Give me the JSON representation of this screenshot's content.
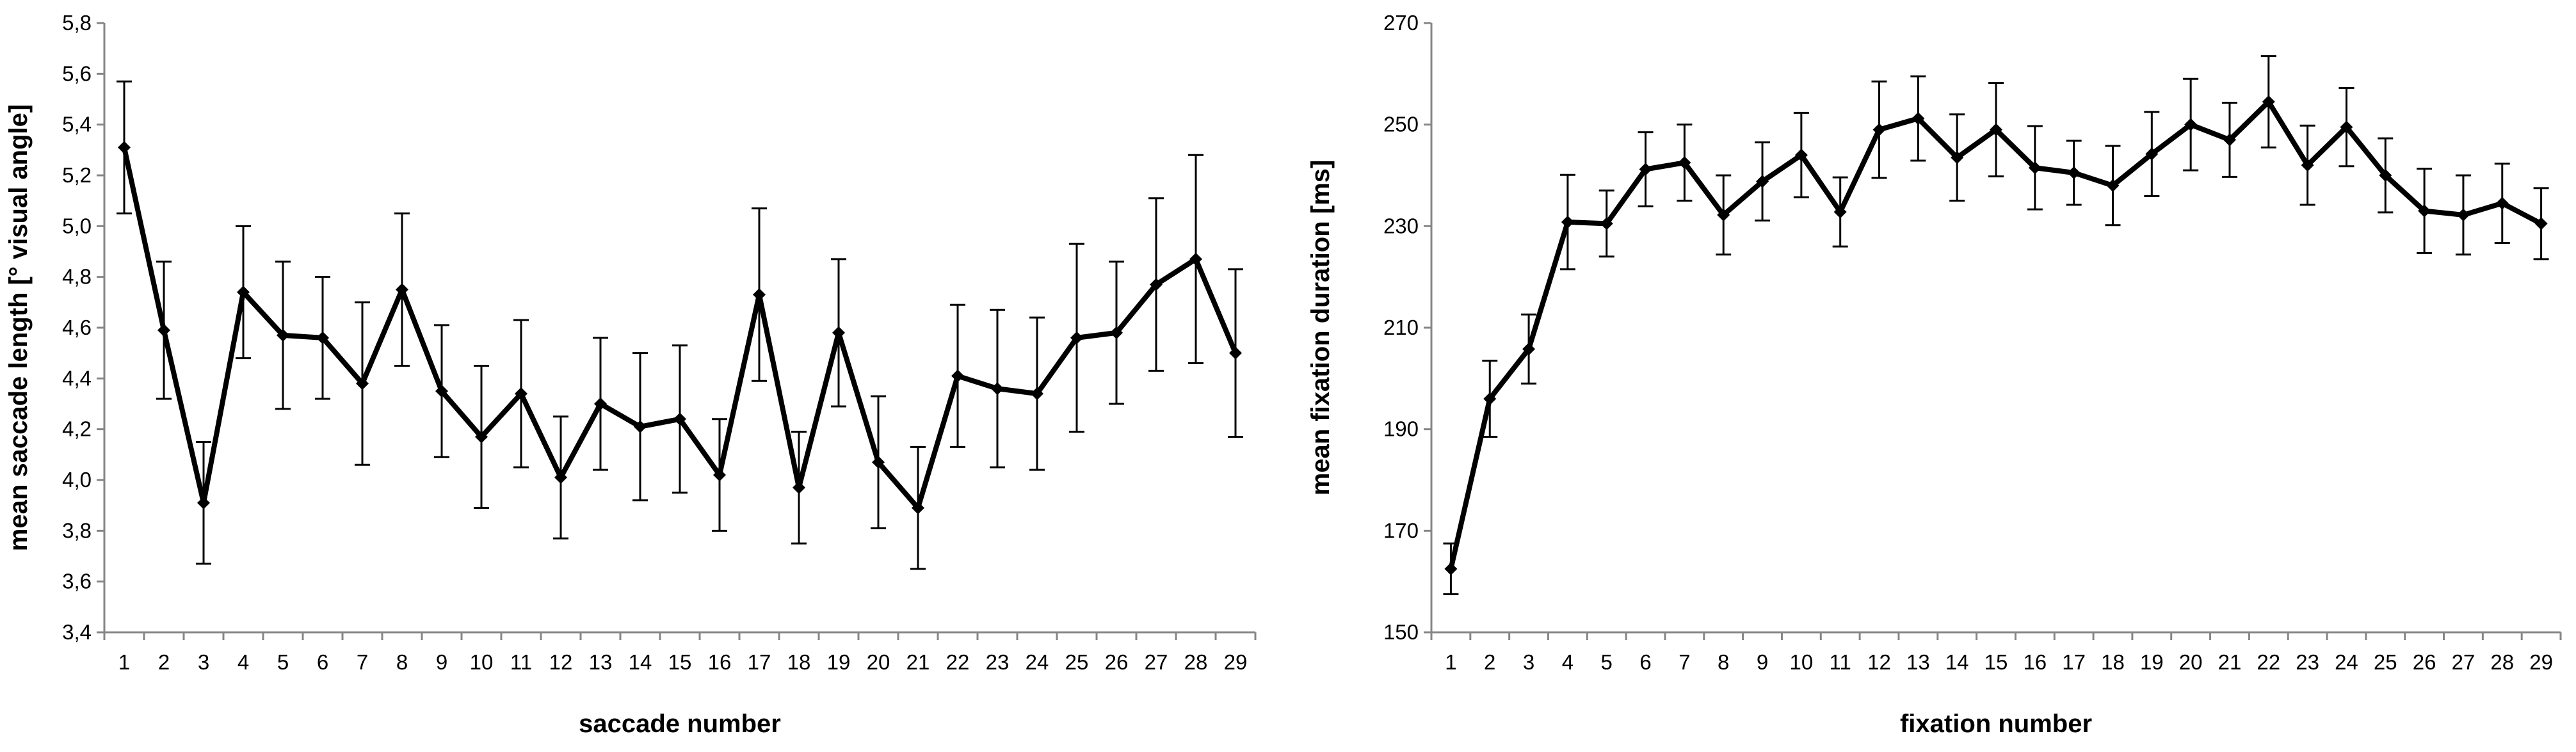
{
  "chart_data": [
    {
      "type": "line",
      "xlabel": "saccade number",
      "ylabel": "mean saccade length [° visual angle]",
      "ylim": [
        3.4,
        5.8
      ],
      "yticks": [
        "3,4",
        "3,6",
        "3,8",
        "4,0",
        "4,2",
        "4,4",
        "4,6",
        "4,8",
        "5,0",
        "5,2",
        "5,4",
        "5,6",
        "5,8"
      ],
      "categories": [
        "1",
        "2",
        "3",
        "4",
        "5",
        "6",
        "7",
        "8",
        "9",
        "10",
        "11",
        "12",
        "13",
        "14",
        "15",
        "16",
        "17",
        "18",
        "19",
        "20",
        "21",
        "22",
        "23",
        "24",
        "25",
        "26",
        "27",
        "28",
        "29"
      ],
      "grid": false,
      "legend": "none",
      "series": [
        {
          "values": [
            5.31,
            4.59,
            3.91,
            4.74,
            4.57,
            4.56,
            4.38,
            4.75,
            4.35,
            4.17,
            4.34,
            4.01,
            4.3,
            4.21,
            4.24,
            4.02,
            4.73,
            3.97,
            4.58,
            4.07,
            3.89,
            4.41,
            4.36,
            4.34,
            4.56,
            4.58,
            4.77,
            4.87,
            4.5
          ],
          "errors": [
            0.26,
            0.27,
            0.24,
            0.26,
            0.29,
            0.24,
            0.32,
            0.3,
            0.26,
            0.28,
            0.29,
            0.24,
            0.26,
            0.29,
            0.29,
            0.22,
            0.34,
            0.22,
            0.29,
            0.26,
            0.24,
            0.28,
            0.31,
            0.3,
            0.37,
            0.28,
            0.34,
            0.41,
            0.33
          ]
        }
      ]
    },
    {
      "type": "line",
      "xlabel": "fixation number",
      "ylabel": "mean fixation duration [ms]",
      "ylim": [
        150,
        270
      ],
      "yticks": [
        "150",
        "170",
        "190",
        "210",
        "230",
        "250",
        "270"
      ],
      "categories": [
        "1",
        "2",
        "3",
        "4",
        "5",
        "6",
        "7",
        "8",
        "9",
        "10",
        "11",
        "12",
        "13",
        "14",
        "15",
        "16",
        "17",
        "18",
        "19",
        "20",
        "21",
        "22",
        "23",
        "24",
        "25",
        "26",
        "27",
        "28",
        "29"
      ],
      "grid": false,
      "legend": "none",
      "series": [
        {
          "values": [
            162.5,
            196.0,
            205.8,
            230.8,
            230.5,
            241.2,
            242.5,
            232.2,
            238.8,
            244.0,
            232.8,
            249.0,
            251.2,
            243.5,
            249.0,
            241.5,
            240.5,
            238.0,
            244.2,
            250.0,
            247.0,
            254.5,
            242.0,
            249.5,
            240.0,
            233.0,
            232.2,
            234.5,
            230.5
          ],
          "errors": [
            5.0,
            7.5,
            6.8,
            9.3,
            6.5,
            7.3,
            7.5,
            7.8,
            7.7,
            8.3,
            6.8,
            9.5,
            8.3,
            8.5,
            9.2,
            8.2,
            6.3,
            7.8,
            8.3,
            9.0,
            7.3,
            9.0,
            7.8,
            7.7,
            7.3,
            8.3,
            7.8,
            7.8,
            7.0
          ]
        }
      ]
    }
  ]
}
